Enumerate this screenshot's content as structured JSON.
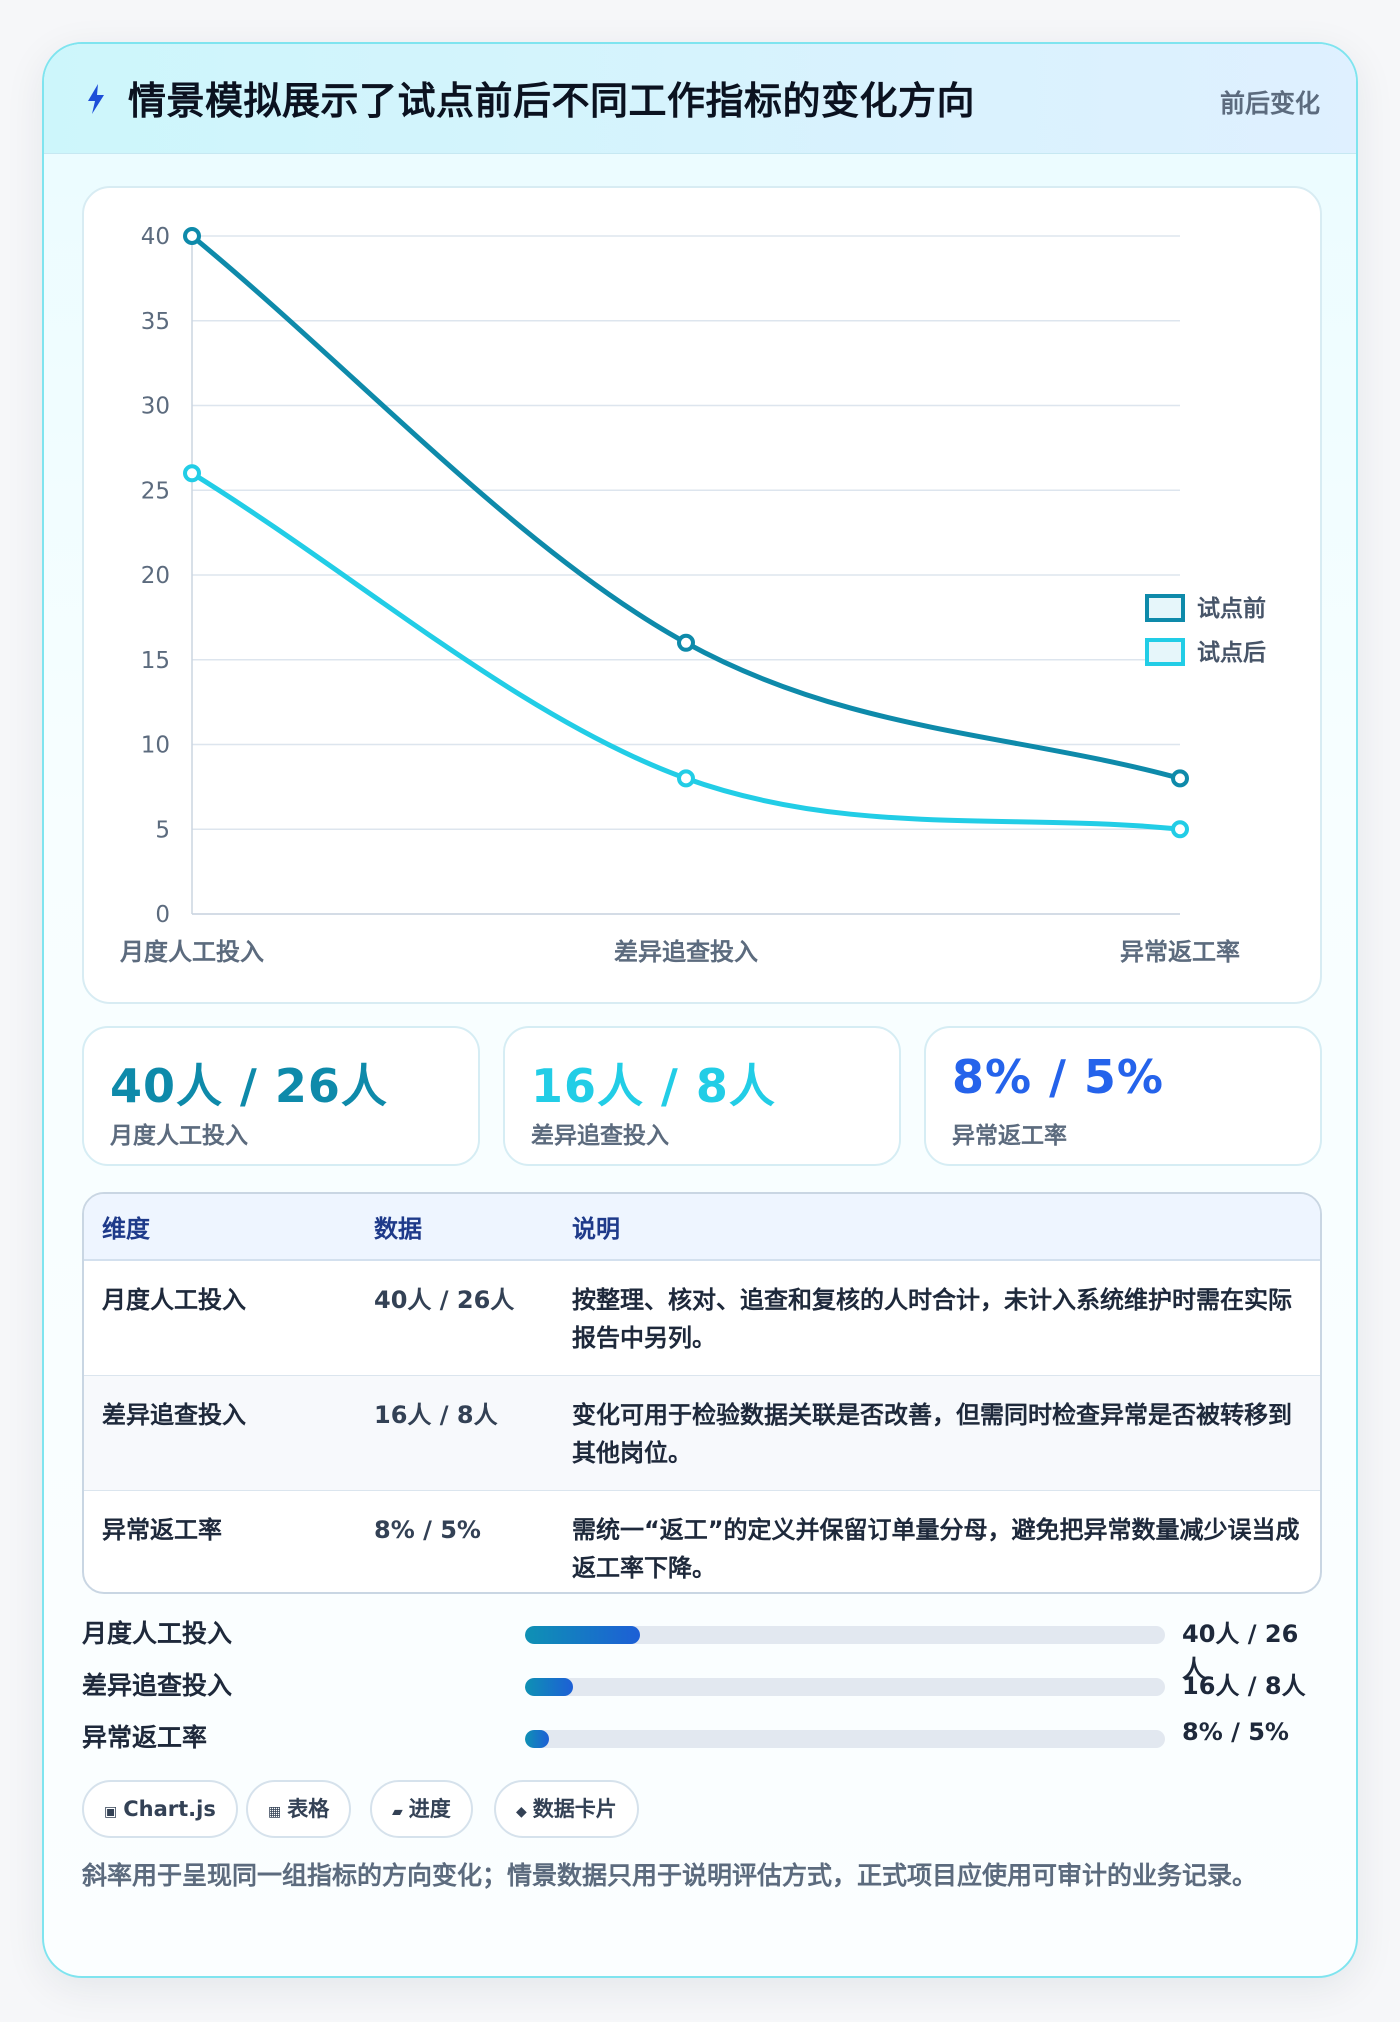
{
  "header": {
    "title": "情景模拟展示了试点前后不同工作指标的变化方向",
    "tag": "前后变化"
  },
  "chart_data": {
    "type": "line",
    "categories": [
      "月度人工投入",
      "差异追查投入",
      "异常返工率"
    ],
    "series": [
      {
        "name": "试点前",
        "values": [
          40,
          16,
          8
        ],
        "color": "#0e8aaa"
      },
      {
        "name": "试点后",
        "values": [
          26,
          8,
          5
        ],
        "color": "#22cde6"
      }
    ],
    "ylim": [
      0,
      40
    ],
    "yticks": [
      0,
      5,
      10,
      15,
      20,
      25,
      30,
      35,
      40
    ],
    "grid": true,
    "legend": "right"
  },
  "stats": [
    {
      "value": "40人 / 26人",
      "label": "月度人工投入",
      "color": "#0e8aaa"
    },
    {
      "value": "16人 / 8人",
      "label": "差异追查投入",
      "color": "#22cde6"
    },
    {
      "value": "8% / 5%",
      "label": "异常返工率",
      "color": "#2563eb"
    }
  ],
  "table": {
    "headers": [
      "维度",
      "数据",
      "说明"
    ],
    "rows": [
      {
        "dim": "月度人工投入",
        "data": "40人 / 26人",
        "note": "按整理、核对、追查和复核的人时合计，未计入系统维护时需在实际报告中另列。"
      },
      {
        "dim": "差异追查投入",
        "data": "16人 / 8人",
        "note": "变化可用于检验数据关联是否改善，但需同时检查异常是否被转移到其他岗位。"
      },
      {
        "dim": "异常返工率",
        "data": "8% / 5%",
        "note": "需统一“返工”的定义并保留订单量分母，避免把异常数量减少误当成返工率下降。"
      }
    ]
  },
  "progress": [
    {
      "label": "月度人工投入",
      "value": "40人 / 26人",
      "fill": 0.18
    },
    {
      "label": "差异追查投入",
      "value": "16人 / 8人",
      "fill": 0.075
    },
    {
      "label": "异常返工率",
      "value": "8% / 5%",
      "fill": 0.038
    }
  ],
  "chips": [
    {
      "icon": "▣",
      "label": "Chart.js",
      "icon_name": "chart-icon"
    },
    {
      "icon": "▦",
      "label": "表格",
      "icon_name": "table-icon"
    },
    {
      "icon": "▰",
      "label": "进度",
      "icon_name": "progress-icon"
    },
    {
      "icon": "◆",
      "label": "数据卡片",
      "icon_name": "card-icon"
    }
  ],
  "footnote": "斜率用于呈现同一组指标的方向变化；情景数据只用于说明评估方式，正式项目应使用可审计的业务记录。"
}
